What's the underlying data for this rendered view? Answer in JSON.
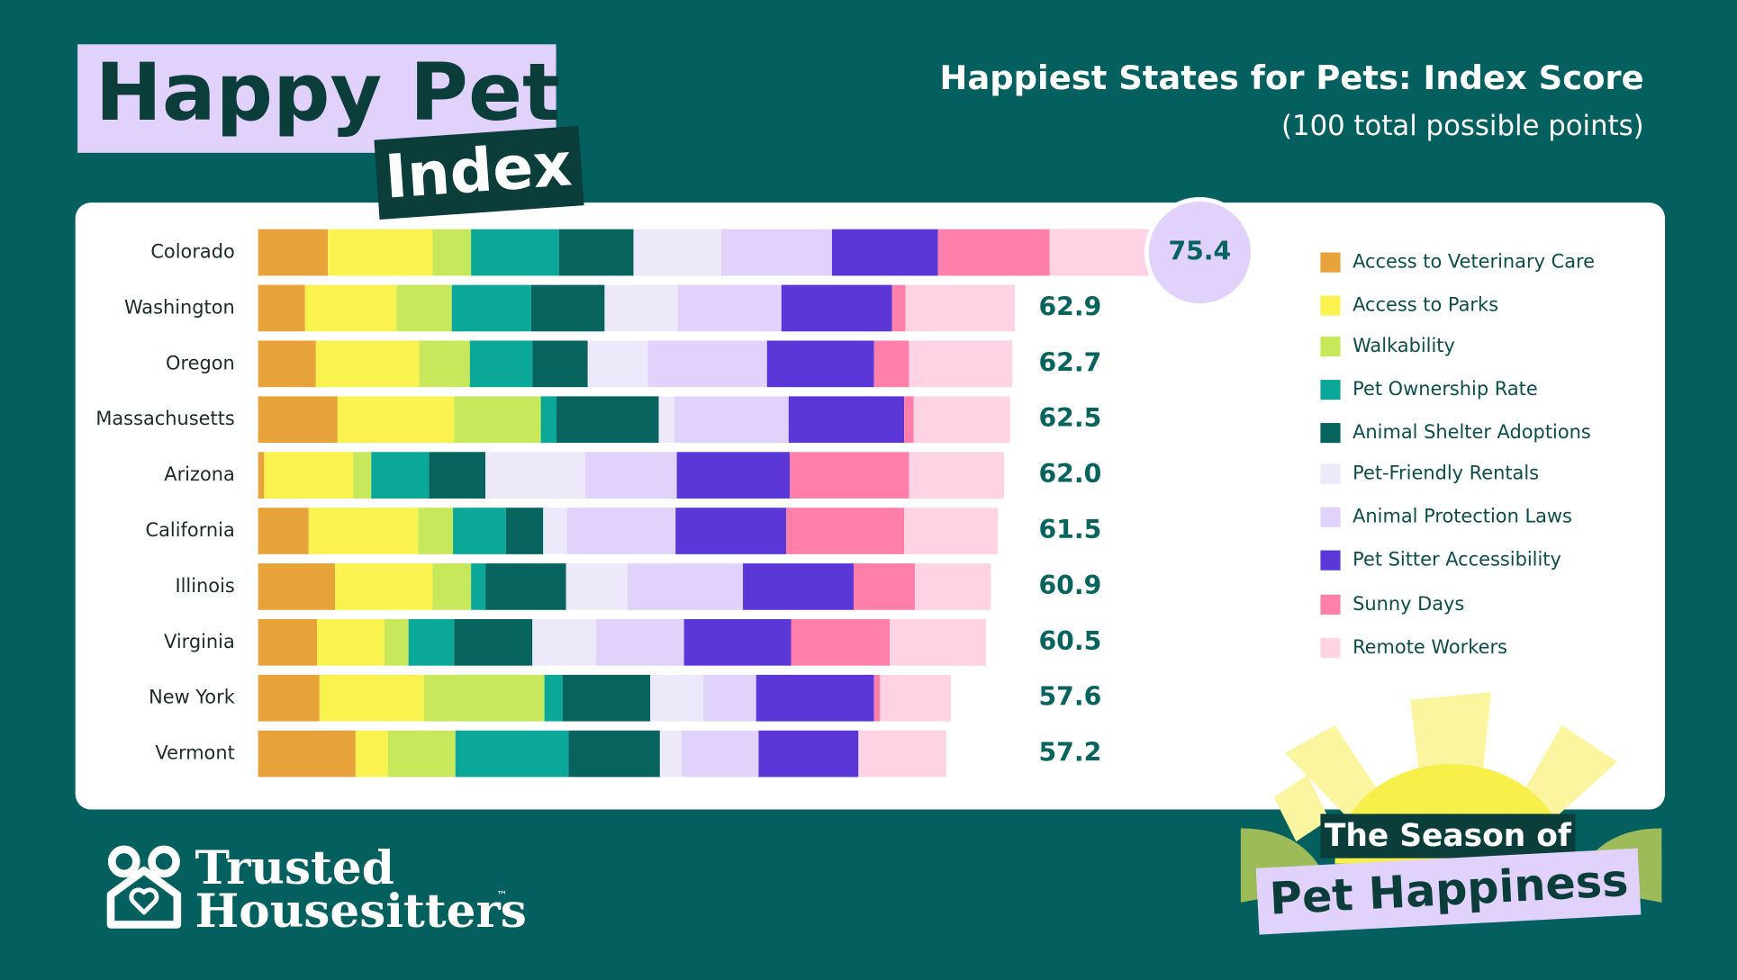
{
  "header": {
    "title_line1": "Happy Pet",
    "title_line2": "Index"
  },
  "chart_data": {
    "type": "stacked-bar",
    "title": "Happiest States for Pets: Index Score",
    "subtitle": "(100 total possible points)",
    "categories": [
      "Colorado",
      "Washington",
      "Oregon",
      "Massachusetts",
      "Arizona",
      "California",
      "Illinois",
      "Virginia",
      "New York",
      "Vermont"
    ],
    "series": [
      {
        "name": "Access to Veterinary Care",
        "color": "#E8A23A",
        "values": [
          5.8,
          3.9,
          4.8,
          6.6,
          0.5,
          4.2,
          6.4,
          4.9,
          5.1,
          8.1
        ]
      },
      {
        "name": "Access to Parks",
        "color": "#F9F24F",
        "values": [
          8.7,
          7.6,
          8.6,
          9.7,
          7.4,
          9.1,
          8.1,
          5.6,
          8.7,
          2.7
        ]
      },
      {
        "name": "Walkability",
        "color": "#C6E85A",
        "values": [
          3.2,
          4.6,
          4.2,
          7.2,
          1.5,
          2.9,
          3.2,
          2.0,
          10.0,
          5.6
        ]
      },
      {
        "name": "Pet Ownership Rate",
        "color": "#0BA89A",
        "values": [
          7.3,
          6.6,
          5.2,
          1.3,
          4.8,
          4.4,
          1.2,
          3.8,
          1.5,
          9.4
        ]
      },
      {
        "name": "Animal Shelter Adoptions",
        "color": "#06635E",
        "values": [
          6.2,
          6.1,
          4.6,
          8.5,
          4.7,
          3.1,
          6.7,
          6.5,
          7.3,
          7.6
        ]
      },
      {
        "name": "Pet-Friendly Rentals",
        "color": "#EEE8FB",
        "values": [
          7.3,
          6.1,
          5.0,
          1.3,
          8.3,
          2.0,
          5.1,
          5.3,
          4.4,
          1.8
        ]
      },
      {
        "name": "Animal Protection Laws",
        "color": "#E0D2FA",
        "values": [
          9.2,
          8.6,
          9.9,
          9.5,
          7.6,
          9.0,
          9.6,
          7.3,
          4.4,
          6.4
        ]
      },
      {
        "name": "Pet Sitter Accessibility",
        "color": "#5A37D6",
        "values": [
          8.8,
          9.2,
          8.9,
          9.6,
          9.4,
          9.2,
          9.2,
          8.9,
          9.8,
          8.3
        ]
      },
      {
        "name": "Sunny Days",
        "color": "#FF7FAA",
        "values": [
          9.3,
          1.1,
          2.9,
          0.8,
          9.9,
          9.8,
          5.1,
          8.2,
          0.5,
          0
        ]
      },
      {
        "name": "Remote Workers",
        "color": "#FFD3E3",
        "values": [
          9.6,
          9.1,
          8.6,
          8.0,
          7.9,
          7.8,
          6.3,
          8.0,
          5.9,
          7.3
        ]
      }
    ],
    "totals": [
      75.4,
      62.9,
      62.7,
      62.5,
      62,
      61.5,
      60.9,
      60.5,
      57.6,
      57.2
    ],
    "total_labels": [
      "75.4",
      "62.9",
      "62.7",
      "62.5",
      "62.0",
      "61.5",
      "60.9",
      "60.5",
      "57.6",
      "57.2"
    ]
  },
  "brand": {
    "name_line1": "Trusted",
    "name_line2": "Housesitters",
    "trademark": "™"
  },
  "badge": {
    "line1": "The Season of",
    "line2": "Pet Happiness"
  }
}
